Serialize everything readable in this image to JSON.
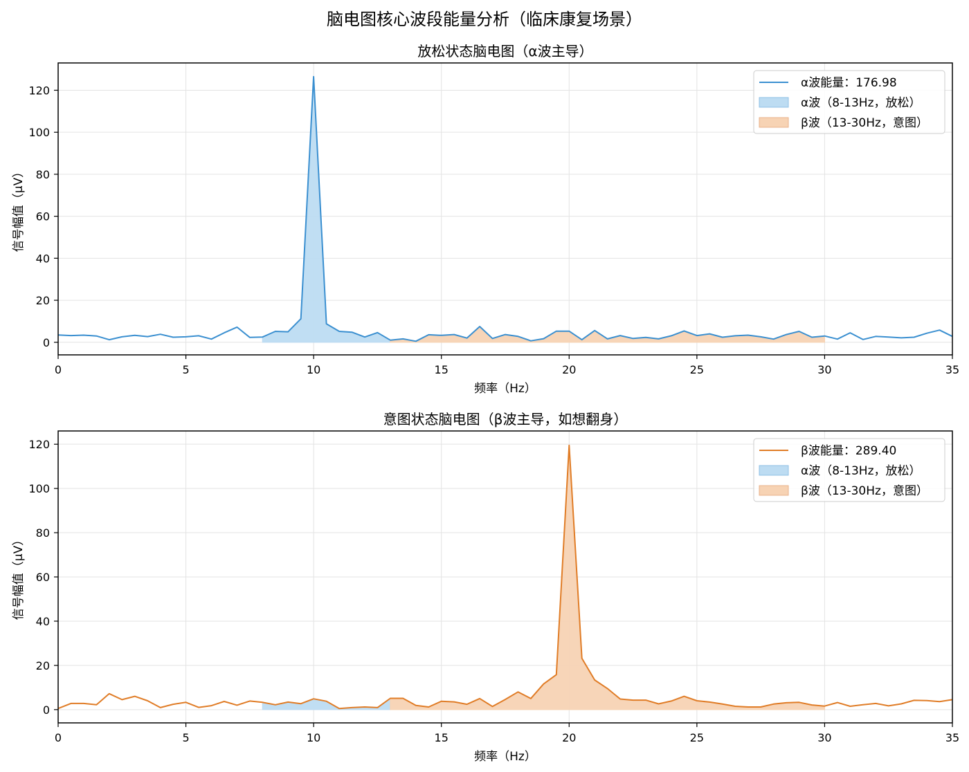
{
  "figure": {
    "suptitle": "脑电图核心波段能量分析（临床康复场景）",
    "colors": {
      "alpha_line": "#3a8fd0",
      "beta_line": "#e07c26",
      "alpha_fill": "#bddcf2",
      "beta_fill": "#f7d3b4",
      "grid": "#e3e3e3"
    }
  },
  "chart_data": [
    {
      "type": "line",
      "title": "放松状态脑电图（α波主导）",
      "xlabel": "频率（Hz）",
      "ylabel": "信号幅值（μV）",
      "xlim": [
        0,
        35
      ],
      "ylim": [
        -6,
        133
      ],
      "xticks": [
        0,
        5,
        10,
        15,
        20,
        25,
        30,
        35
      ],
      "yticks": [
        0,
        20,
        40,
        60,
        80,
        100,
        120
      ],
      "grid": true,
      "legend_position": "upper right",
      "legend": [
        "α波能量：176.98",
        "α波（8-13Hz，放松）",
        "β波（13-30Hz，意图）"
      ],
      "series": [
        {
          "name": "α波能量：176.98",
          "color": "#3a8fd0",
          "x_step": 0.5,
          "values": [
            3.5,
            3.2,
            3.4,
            3.0,
            1.2,
            2.6,
            3.3,
            2.7,
            3.8,
            2.4,
            2.6,
            3.1,
            1.5,
            4.5,
            7.2,
            2.3,
            2.5,
            5.2,
            5.0,
            11.2,
            126.5,
            8.8,
            5.2,
            4.8,
            2.5,
            4.6,
            1.0,
            1.6,
            0.5,
            3.6,
            3.3,
            3.7,
            2.0,
            7.5,
            1.8,
            3.7,
            2.8,
            0.7,
            1.7,
            5.3,
            5.3,
            1.2,
            5.6,
            1.6,
            3.2,
            1.8,
            2.3,
            1.6,
            3.1,
            5.4,
            3.2,
            4.0,
            2.4,
            3.1,
            3.4,
            2.6,
            1.5,
            3.7,
            5.2,
            2.4,
            3.0,
            1.5,
            4.5,
            1.3,
            2.8,
            2.5,
            2.1,
            2.4,
            4.3,
            5.8,
            2.8
          ]
        }
      ],
      "bands": [
        {
          "name": "α波（8-13Hz，放松）",
          "from": 8,
          "to": 13,
          "color": "#bddcf2"
        },
        {
          "name": "β波（13-30Hz，意图）",
          "from": 13,
          "to": 30,
          "color": "#f7d3b4"
        }
      ]
    },
    {
      "type": "line",
      "title": "意图状态脑电图（β波主导，如想翻身）",
      "xlabel": "频率（Hz）",
      "ylabel": "信号幅值（μV）",
      "xlim": [
        0,
        35
      ],
      "ylim": [
        -6,
        126
      ],
      "xticks": [
        0,
        5,
        10,
        15,
        20,
        25,
        30,
        35
      ],
      "yticks": [
        0,
        20,
        40,
        60,
        80,
        100,
        120
      ],
      "grid": true,
      "legend_position": "upper right",
      "legend": [
        "β波能量：289.40",
        "α波（8-13Hz，放松）",
        "β波（13-30Hz，意图）"
      ],
      "series": [
        {
          "name": "β波能量：289.40",
          "color": "#e07c26",
          "x_step": 0.5,
          "values": [
            0.5,
            2.8,
            2.8,
            2.2,
            7.2,
            4.5,
            6.0,
            4.0,
            0.9,
            2.4,
            3.3,
            1.0,
            1.8,
            3.7,
            2.0,
            3.9,
            3.3,
            2.2,
            3.4,
            2.7,
            4.9,
            3.8,
            0.5,
            0.9,
            1.2,
            0.9,
            5.1,
            5.1,
            1.9,
            1.2,
            3.8,
            3.5,
            2.4,
            5.0,
            1.4,
            4.6,
            8.0,
            5.0,
            11.6,
            15.8,
            119.5,
            23.2,
            13.4,
            9.5,
            4.8,
            4.3,
            4.3,
            2.6,
            3.9,
            6.0,
            4.0,
            3.4,
            2.5,
            1.5,
            1.2,
            1.2,
            2.5,
            3.1,
            3.3,
            2.1,
            1.6,
            3.2,
            1.5,
            2.2,
            2.8,
            1.7,
            2.6,
            4.2,
            4.1,
            3.6,
            4.5
          ]
        }
      ],
      "bands": [
        {
          "name": "α波（8-13Hz，放松）",
          "from": 8,
          "to": 13,
          "color": "#bddcf2"
        },
        {
          "name": "β波（13-30Hz，意图）",
          "from": 13,
          "to": 30,
          "color": "#f7d3b4"
        }
      ]
    }
  ]
}
